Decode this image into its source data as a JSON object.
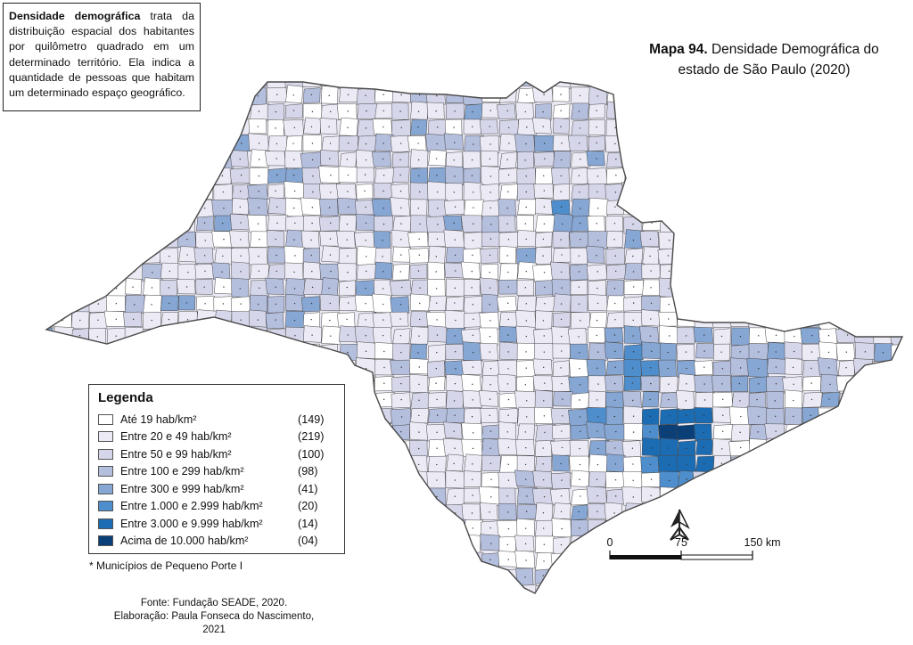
{
  "info": {
    "term": "Densidade demográfica",
    "text": "trata da distribuição espacial dos habitantes por quilômetro quadrado em um determinado território. Ela indica a quantidade de pessoas que habitam um determinado espaço geográfico."
  },
  "title": {
    "label": "Mapa 94.",
    "line1": "Densidade Demográfica do",
    "line2": "estado de São Paulo (2020)"
  },
  "legend": {
    "heading": "Legenda",
    "items": [
      {
        "label": "Até 19 hab/km²",
        "count": "(149)",
        "color": "#ffffff"
      },
      {
        "label": "Entre 20 e 49 hab/km²",
        "count": "(219)",
        "color": "#eceaf4"
      },
      {
        "label": "Entre 50 e 99 hab/km²",
        "count": "(100)",
        "color": "#d6d6ea"
      },
      {
        "label": "Entre 100 e 299 hab/km²",
        "count": "(98)",
        "color": "#b4bedd"
      },
      {
        "label": "Entre 300 e 999 hab/km²",
        "count": "(41)",
        "color": "#86a6d3"
      },
      {
        "label": "Entre 1.000 e 2.999 hab/km²",
        "count": "(20)",
        "color": "#4e8ecc"
      },
      {
        "label": "Entre 3.000 e 9.999 hab/km²",
        "count": "(14)",
        "color": "#1c6cb4"
      },
      {
        "label": "Acima de 10.000 hab/km²",
        "count": "(04)",
        "color": "#0b3f78"
      }
    ]
  },
  "footnote": "* Municípios de Pequeno Porte I",
  "source": {
    "line1": "Fonte: Fundação SEADE, 2020.",
    "line2": "Elaboração: Paula Fonseca do Nascimento, 2021"
  },
  "scale": {
    "labels": [
      "0",
      "75",
      "150 km"
    ]
  },
  "north_arrow": "north-arrow-icon",
  "colors": {
    "border": "#4a4a4a",
    "state_fill": "#eceaf4"
  }
}
